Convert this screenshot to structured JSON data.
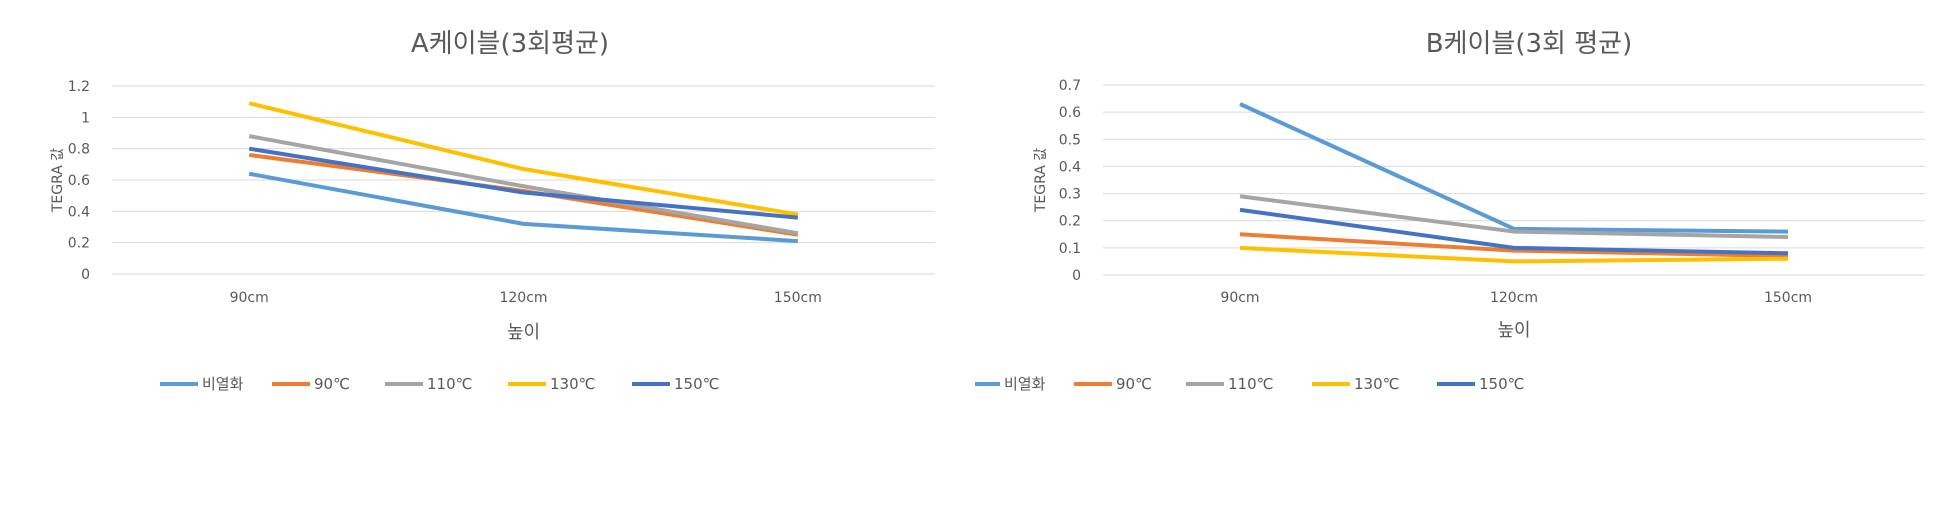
{
  "chart_data": [
    {
      "type": "line",
      "title": "A케이블(3회평균)",
      "xlabel": "높이",
      "ylabel": "TEGRA 값",
      "categories": [
        "90cm",
        "120cm",
        "150cm"
      ],
      "ylim": [
        0,
        1.2
      ],
      "yticks": [
        0,
        0.2,
        0.4,
        0.6,
        0.8,
        1,
        1.2
      ],
      "grid": true,
      "legend": "bottom",
      "series": [
        {
          "name": "비열화",
          "color": "#5b9bd5",
          "values": [
            0.64,
            0.32,
            0.21
          ]
        },
        {
          "name": "90℃",
          "color": "#ed7d31",
          "values": [
            0.76,
            0.53,
            0.25
          ]
        },
        {
          "name": "110℃",
          "color": "#a5a5a5",
          "values": [
            0.88,
            0.56,
            0.26
          ]
        },
        {
          "name": "130℃",
          "color": "#ffc000",
          "values": [
            1.09,
            0.67,
            0.38
          ]
        },
        {
          "name": "150℃",
          "color": "#4472c4",
          "values": [
            0.8,
            0.52,
            0.36
          ]
        }
      ]
    },
    {
      "type": "line",
      "title": "B케이블(3회 평균)",
      "xlabel": "높이",
      "ylabel": "TEGRA 값",
      "categories": [
        "90cm",
        "120cm",
        "150cm"
      ],
      "ylim": [
        0,
        0.7
      ],
      "yticks": [
        0,
        0.1,
        0.2,
        0.3,
        0.4,
        0.5,
        0.6,
        0.7
      ],
      "grid": true,
      "legend": "bottom",
      "series": [
        {
          "name": "비열화",
          "color": "#5b9bd5",
          "values": [
            0.63,
            0.17,
            0.16
          ]
        },
        {
          "name": "90℃",
          "color": "#ed7d31",
          "values": [
            0.15,
            0.09,
            0.07
          ]
        },
        {
          "name": "110℃",
          "color": "#a5a5a5",
          "values": [
            0.29,
            0.16,
            0.14
          ]
        },
        {
          "name": "130℃",
          "color": "#ffc000",
          "values": [
            0.1,
            0.05,
            0.06
          ]
        },
        {
          "name": "150℃",
          "color": "#4472c4",
          "values": [
            0.24,
            0.1,
            0.08
          ]
        }
      ]
    }
  ]
}
